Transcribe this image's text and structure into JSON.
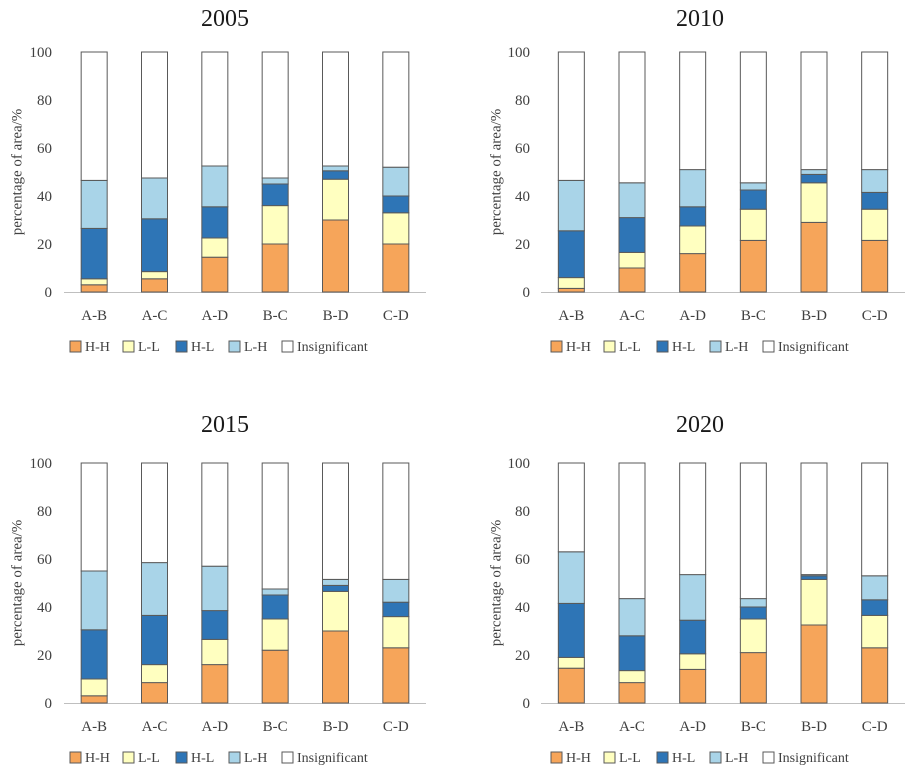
{
  "chart_data": [
    {
      "type": "bar",
      "stacked": true,
      "title": "2005",
      "ylabel": "percentage of area/%",
      "xlabel": "",
      "ylim": [
        0,
        100
      ],
      "yticks": [
        0,
        20,
        40,
        60,
        80,
        100
      ],
      "categories": [
        "A-B",
        "A-C",
        "A-D",
        "B-C",
        "B-D",
        "C-D"
      ],
      "series": [
        {
          "name": "H-H",
          "values": [
            3,
            5.5,
            14.5,
            20,
            30,
            20
          ]
        },
        {
          "name": "L-L",
          "values": [
            2.5,
            3,
            8,
            16,
            17,
            13
          ]
        },
        {
          "name": "H-L",
          "values": [
            21,
            22,
            13,
            9,
            3.5,
            7
          ]
        },
        {
          "name": "L-H",
          "values": [
            20,
            17,
            17,
            2.5,
            2,
            12
          ]
        },
        {
          "name": "Insignificant",
          "values": [
            53.5,
            52.5,
            47.5,
            52.5,
            47.5,
            48
          ]
        }
      ],
      "legend": "bottom"
    },
    {
      "type": "bar",
      "stacked": true,
      "title": "2010",
      "ylabel": "percentage of area/%",
      "xlabel": "",
      "ylim": [
        0,
        100
      ],
      "yticks": [
        0,
        20,
        40,
        60,
        80,
        100
      ],
      "categories": [
        "A-B",
        "A-C",
        "A-D",
        "B-C",
        "B-D",
        "C-D"
      ],
      "series": [
        {
          "name": "H-H",
          "values": [
            1.5,
            10,
            16,
            21.5,
            29,
            21.5
          ]
        },
        {
          "name": "L-L",
          "values": [
            4.5,
            6.5,
            11.5,
            13,
            16.5,
            13
          ]
        },
        {
          "name": "H-L",
          "values": [
            19.5,
            14.5,
            8,
            8,
            3.5,
            7
          ]
        },
        {
          "name": "L-H",
          "values": [
            21,
            14.5,
            15.5,
            3,
            2,
            9.5
          ]
        },
        {
          "name": "Insignificant",
          "values": [
            53.5,
            54.5,
            49,
            54.5,
            49,
            49
          ]
        }
      ],
      "legend": "bottom"
    },
    {
      "type": "bar",
      "stacked": true,
      "title": "2015",
      "ylabel": "percentage of area/%",
      "xlabel": "",
      "ylim": [
        0,
        100
      ],
      "yticks": [
        0,
        20,
        40,
        60,
        80,
        100
      ],
      "categories": [
        "A-B",
        "A-C",
        "A-D",
        "B-C",
        "B-D",
        "C-D"
      ],
      "series": [
        {
          "name": "H-H",
          "values": [
            3,
            8.5,
            16,
            22,
            30,
            23
          ]
        },
        {
          "name": "L-L",
          "values": [
            7,
            7.5,
            10.5,
            13,
            16.5,
            13
          ]
        },
        {
          "name": "H-L",
          "values": [
            20.5,
            20.5,
            12,
            10,
            2.5,
            6
          ]
        },
        {
          "name": "L-H",
          "values": [
            24.5,
            22,
            18.5,
            2.5,
            2.5,
            9.5
          ]
        },
        {
          "name": "Insignificant",
          "values": [
            45,
            41.5,
            43,
            52.5,
            48.5,
            48.5
          ]
        }
      ],
      "legend": "bottom"
    },
    {
      "type": "bar",
      "stacked": true,
      "title": "2020",
      "ylabel": "percentage of area/%",
      "xlabel": "",
      "ylim": [
        0,
        100
      ],
      "yticks": [
        0,
        20,
        40,
        60,
        80,
        100
      ],
      "categories": [
        "A-B",
        "A-C",
        "A-D",
        "B-C",
        "B-D",
        "C-D"
      ],
      "series": [
        {
          "name": "H-H",
          "values": [
            14.5,
            8.5,
            14,
            21,
            32.5,
            23
          ]
        },
        {
          "name": "L-L",
          "values": [
            4.5,
            5,
            6.5,
            14,
            19,
            13.5
          ]
        },
        {
          "name": "H-L",
          "values": [
            22.5,
            14.5,
            14,
            5,
            1.5,
            6.5
          ]
        },
        {
          "name": "L-H",
          "values": [
            21.5,
            15.5,
            19,
            3.5,
            0.5,
            10
          ]
        },
        {
          "name": "Insignificant",
          "values": [
            37,
            56.5,
            46.5,
            56.5,
            46.5,
            47
          ]
        }
      ],
      "legend": "bottom"
    }
  ],
  "colors": {
    "H-H": "#f6a55a",
    "L-L": "#ffffc0",
    "H-L": "#2e75b6",
    "L-H": "#a9d4e8",
    "Insignificant": "#ffffff",
    "axis": "#bfbfbf",
    "outline": "#595959"
  }
}
